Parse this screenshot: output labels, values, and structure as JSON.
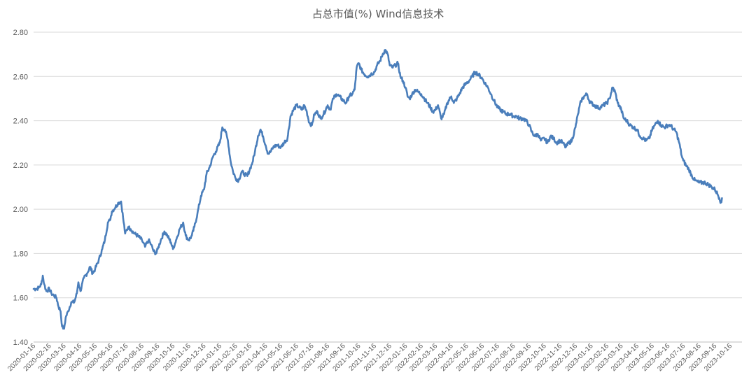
{
  "chart_data": {
    "type": "line",
    "title": "占总市值(%) Wind信息技术",
    "xlabel": "",
    "ylabel": "",
    "ylim": [
      1.4,
      2.8
    ],
    "yticks": [
      "1.40",
      "1.60",
      "1.80",
      "2.00",
      "2.20",
      "2.40",
      "2.60",
      "2.80"
    ],
    "grid": true,
    "legend": "none",
    "line_color": "#4a7ebb",
    "x_tick_labels": [
      "2020-01-16",
      "2020-02-16",
      "2020-03-16",
      "2020-04-16",
      "2020-05-16",
      "2020-06-16",
      "2020-07-16",
      "2020-08-16",
      "2020-09-16",
      "2020-10-16",
      "2020-11-16",
      "2020-12-16",
      "2021-01-16",
      "2021-02-16",
      "2021-03-16",
      "2021-04-16",
      "2021-05-16",
      "2021-06-16",
      "2021-07-16",
      "2021-08-16",
      "2021-09-16",
      "2021-10-16",
      "2021-11-16",
      "2021-12-16",
      "2022-01-16",
      "2022-02-16",
      "2022-03-16",
      "2022-04-16",
      "2022-05-16",
      "2022-06-16",
      "2022-07-16",
      "2022-08-16",
      "2022-09-16",
      "2022-10-16",
      "2022-11-16",
      "2022-12-16",
      "2023-01-16",
      "2023-02-16",
      "2023-03-16",
      "2023-04-16",
      "2023-05-16",
      "2023-06-16",
      "2023-07-16",
      "2023-08-16",
      "2023-09-16",
      "2023-10-16"
    ],
    "series": [
      {
        "points": [
          [
            "2020-01-16",
            1.64
          ],
          [
            "2020-01-21",
            1.64
          ],
          [
            "2020-01-26",
            1.645
          ],
          [
            "2020-01-31",
            1.66
          ],
          [
            "2020-02-03",
            1.7
          ],
          [
            "2020-02-06",
            1.66
          ],
          [
            "2020-02-10",
            1.63
          ],
          [
            "2020-02-16",
            1.64
          ],
          [
            "2020-02-20",
            1.62
          ],
          [
            "2020-02-25",
            1.61
          ],
          [
            "2020-03-01",
            1.6
          ],
          [
            "2020-03-05",
            1.56
          ],
          [
            "2020-03-09",
            1.54
          ],
          [
            "2020-03-12",
            1.47
          ],
          [
            "2020-03-16",
            1.46
          ],
          [
            "2020-03-19",
            1.51
          ],
          [
            "2020-03-24",
            1.54
          ],
          [
            "2020-03-30",
            1.58
          ],
          [
            "2020-04-05",
            1.58
          ],
          [
            "2020-04-10",
            1.62
          ],
          [
            "2020-04-13",
            1.67
          ],
          [
            "2020-04-17",
            1.63
          ],
          [
            "2020-04-24",
            1.69
          ],
          [
            "2020-04-30",
            1.71
          ],
          [
            "2020-05-06",
            1.74
          ],
          [
            "2020-05-11",
            1.71
          ],
          [
            "2020-05-16",
            1.73
          ],
          [
            "2020-05-23",
            1.77
          ],
          [
            "2020-05-30",
            1.82
          ],
          [
            "2020-06-04",
            1.86
          ],
          [
            "2020-06-10",
            1.94
          ],
          [
            "2020-06-14",
            1.95
          ],
          [
            "2020-06-18",
            1.99
          ],
          [
            "2020-06-25",
            2.01
          ],
          [
            "2020-07-01",
            2.03
          ],
          [
            "2020-07-06",
            2.035
          ],
          [
            "2020-07-10",
            1.96
          ],
          [
            "2020-07-14",
            1.89
          ],
          [
            "2020-07-20",
            1.92
          ],
          [
            "2020-07-25",
            1.91
          ],
          [
            "2020-08-01",
            1.89
          ],
          [
            "2020-08-08",
            1.88
          ],
          [
            "2020-08-16",
            1.86
          ],
          [
            "2020-08-22",
            1.83
          ],
          [
            "2020-08-29",
            1.86
          ],
          [
            "2020-09-03",
            1.84
          ],
          [
            "2020-09-08",
            1.81
          ],
          [
            "2020-09-13",
            1.8
          ],
          [
            "2020-09-16",
            1.82
          ],
          [
            "2020-09-22",
            1.86
          ],
          [
            "2020-09-29",
            1.9
          ],
          [
            "2020-10-05",
            1.88
          ],
          [
            "2020-10-12",
            1.85
          ],
          [
            "2020-10-16",
            1.82
          ],
          [
            "2020-10-22",
            1.86
          ],
          [
            "2020-10-29",
            1.91
          ],
          [
            "2020-11-05",
            1.94
          ],
          [
            "2020-11-10",
            1.88
          ],
          [
            "2020-11-16",
            1.86
          ],
          [
            "2020-11-22",
            1.88
          ],
          [
            "2020-11-27",
            1.92
          ],
          [
            "2020-12-03",
            1.98
          ],
          [
            "2020-12-10",
            2.06
          ],
          [
            "2020-12-16",
            2.09
          ],
          [
            "2020-12-21",
            2.16
          ],
          [
            "2020-12-27",
            2.19
          ],
          [
            "2021-01-03",
            2.24
          ],
          [
            "2021-01-08",
            2.26
          ],
          [
            "2021-01-16",
            2.3
          ],
          [
            "2021-01-21",
            2.37
          ],
          [
            "2021-01-26",
            2.36
          ],
          [
            "2021-02-01",
            2.31
          ],
          [
            "2021-02-06",
            2.22
          ],
          [
            "2021-02-11",
            2.17
          ],
          [
            "2021-02-16",
            2.14
          ],
          [
            "2021-02-22",
            2.13
          ],
          [
            "2021-02-28",
            2.17
          ],
          [
            "2021-03-05",
            2.16
          ],
          [
            "2021-03-11",
            2.15
          ],
          [
            "2021-03-16",
            2.18
          ],
          [
            "2021-03-21",
            2.21
          ],
          [
            "2021-03-26",
            2.26
          ],
          [
            "2021-04-01",
            2.33
          ],
          [
            "2021-04-06",
            2.36
          ],
          [
            "2021-04-11",
            2.33
          ],
          [
            "2021-04-16",
            2.29
          ],
          [
            "2021-04-21",
            2.25
          ],
          [
            "2021-04-26",
            2.26
          ],
          [
            "2021-05-01",
            2.28
          ],
          [
            "2021-05-08",
            2.29
          ],
          [
            "2021-05-16",
            2.28
          ],
          [
            "2021-05-22",
            2.3
          ],
          [
            "2021-05-29",
            2.32
          ],
          [
            "2021-06-04",
            2.42
          ],
          [
            "2021-06-10",
            2.45
          ],
          [
            "2021-06-16",
            2.47
          ],
          [
            "2021-06-21",
            2.46
          ],
          [
            "2021-06-27",
            2.45
          ],
          [
            "2021-07-01",
            2.47
          ],
          [
            "2021-07-06",
            2.44
          ],
          [
            "2021-07-11",
            2.39
          ],
          [
            "2021-07-16",
            2.38
          ],
          [
            "2021-07-21",
            2.43
          ],
          [
            "2021-07-27",
            2.44
          ],
          [
            "2021-08-02",
            2.41
          ],
          [
            "2021-08-08",
            2.43
          ],
          [
            "2021-08-16",
            2.47
          ],
          [
            "2021-08-21",
            2.45
          ],
          [
            "2021-08-27",
            2.5
          ],
          [
            "2021-09-02",
            2.52
          ],
          [
            "2021-09-08",
            2.51
          ],
          [
            "2021-09-16",
            2.49
          ],
          [
            "2021-09-21",
            2.48
          ],
          [
            "2021-09-27",
            2.51
          ],
          [
            "2021-10-03",
            2.52
          ],
          [
            "2021-10-08",
            2.54
          ],
          [
            "2021-10-12",
            2.64
          ],
          [
            "2021-10-16",
            2.66
          ],
          [
            "2021-10-21",
            2.63
          ],
          [
            "2021-10-27",
            2.61
          ],
          [
            "2021-11-03",
            2.6
          ],
          [
            "2021-11-09",
            2.61
          ],
          [
            "2021-11-16",
            2.62
          ],
          [
            "2021-11-21",
            2.65
          ],
          [
            "2021-11-27",
            2.67
          ],
          [
            "2021-12-02",
            2.7
          ],
          [
            "2021-12-07",
            2.72
          ],
          [
            "2021-12-12",
            2.7
          ],
          [
            "2021-12-16",
            2.65
          ],
          [
            "2021-12-21",
            2.64
          ],
          [
            "2021-12-27",
            2.65
          ],
          [
            "2022-01-01",
            2.66
          ],
          [
            "2022-01-06",
            2.6
          ],
          [
            "2022-01-11",
            2.58
          ],
          [
            "2022-01-16",
            2.55
          ],
          [
            "2022-01-20",
            2.51
          ],
          [
            "2022-01-24",
            2.5
          ],
          [
            "2022-01-29",
            2.52
          ],
          [
            "2022-02-04",
            2.54
          ],
          [
            "2022-02-10",
            2.53
          ],
          [
            "2022-02-16",
            2.52
          ],
          [
            "2022-02-22",
            2.5
          ],
          [
            "2022-02-28",
            2.48
          ],
          [
            "2022-03-06",
            2.46
          ],
          [
            "2022-03-11",
            2.44
          ],
          [
            "2022-03-16",
            2.45
          ],
          [
            "2022-03-21",
            2.47
          ],
          [
            "2022-03-27",
            2.41
          ],
          [
            "2022-04-02",
            2.43
          ],
          [
            "2022-04-08",
            2.48
          ],
          [
            "2022-04-16",
            2.51
          ],
          [
            "2022-04-21",
            2.48
          ],
          [
            "2022-04-27",
            2.5
          ],
          [
            "2022-05-02",
            2.52
          ],
          [
            "2022-05-08",
            2.55
          ],
          [
            "2022-05-16",
            2.57
          ],
          [
            "2022-05-21",
            2.58
          ],
          [
            "2022-05-27",
            2.6
          ],
          [
            "2022-06-02",
            2.62
          ],
          [
            "2022-06-08",
            2.61
          ],
          [
            "2022-06-16",
            2.59
          ],
          [
            "2022-06-21",
            2.57
          ],
          [
            "2022-06-27",
            2.55
          ],
          [
            "2022-07-03",
            2.52
          ],
          [
            "2022-07-09",
            2.49
          ],
          [
            "2022-07-16",
            2.46
          ],
          [
            "2022-07-21",
            2.45
          ],
          [
            "2022-07-27",
            2.44
          ],
          [
            "2022-08-03",
            2.43
          ],
          [
            "2022-08-09",
            2.43
          ],
          [
            "2022-08-16",
            2.42
          ],
          [
            "2022-08-22",
            2.42
          ],
          [
            "2022-08-28",
            2.41
          ],
          [
            "2022-09-04",
            2.41
          ],
          [
            "2022-09-10",
            2.4
          ],
          [
            "2022-09-16",
            2.38
          ],
          [
            "2022-09-21",
            2.35
          ],
          [
            "2022-09-27",
            2.33
          ],
          [
            "2022-10-03",
            2.34
          ],
          [
            "2022-10-09",
            2.31
          ],
          [
            "2022-10-16",
            2.32
          ],
          [
            "2022-10-22",
            2.3
          ],
          [
            "2022-10-28",
            2.33
          ],
          [
            "2022-11-03",
            2.32
          ],
          [
            "2022-11-09",
            2.3
          ],
          [
            "2022-11-16",
            2.31
          ],
          [
            "2022-11-21",
            2.3
          ],
          [
            "2022-11-27",
            2.28
          ],
          [
            "2022-12-03",
            2.3
          ],
          [
            "2022-12-09",
            2.31
          ],
          [
            "2022-12-16",
            2.37
          ],
          [
            "2022-12-21",
            2.43
          ],
          [
            "2022-12-27",
            2.49
          ],
          [
            "2023-01-02",
            2.51
          ],
          [
            "2023-01-08",
            2.52
          ],
          [
            "2023-01-12",
            2.49
          ],
          [
            "2023-01-16",
            2.48
          ],
          [
            "2023-01-22",
            2.47
          ],
          [
            "2023-01-28",
            2.46
          ],
          [
            "2023-02-03",
            2.46
          ],
          [
            "2023-02-09",
            2.47
          ],
          [
            "2023-02-16",
            2.48
          ],
          [
            "2023-02-21",
            2.5
          ],
          [
            "2023-02-27",
            2.55
          ],
          [
            "2023-03-04",
            2.53
          ],
          [
            "2023-03-09",
            2.48
          ],
          [
            "2023-03-16",
            2.45
          ],
          [
            "2023-03-21",
            2.41
          ],
          [
            "2023-03-27",
            2.4
          ],
          [
            "2023-04-02",
            2.38
          ],
          [
            "2023-04-09",
            2.37
          ],
          [
            "2023-04-16",
            2.36
          ],
          [
            "2023-04-22",
            2.33
          ],
          [
            "2023-04-28",
            2.32
          ],
          [
            "2023-05-04",
            2.31
          ],
          [
            "2023-05-10",
            2.32
          ],
          [
            "2023-05-16",
            2.36
          ],
          [
            "2023-05-21",
            2.38
          ],
          [
            "2023-05-27",
            2.4
          ],
          [
            "2023-06-02",
            2.38
          ],
          [
            "2023-06-09",
            2.37
          ],
          [
            "2023-06-16",
            2.38
          ],
          [
            "2023-06-21",
            2.38
          ],
          [
            "2023-06-27",
            2.36
          ],
          [
            "2023-07-02",
            2.35
          ],
          [
            "2023-07-08",
            2.3
          ],
          [
            "2023-07-13",
            2.24
          ],
          [
            "2023-07-16",
            2.22
          ],
          [
            "2023-07-21",
            2.2
          ],
          [
            "2023-07-27",
            2.18
          ],
          [
            "2023-08-02",
            2.15
          ],
          [
            "2023-08-08",
            2.13
          ],
          [
            "2023-08-16",
            2.12
          ],
          [
            "2023-08-22",
            2.12
          ],
          [
            "2023-08-28",
            2.12
          ],
          [
            "2023-09-04",
            2.11
          ],
          [
            "2023-09-10",
            2.1
          ],
          [
            "2023-09-16",
            2.09
          ],
          [
            "2023-09-21",
            2.07
          ],
          [
            "2023-09-25",
            2.05
          ],
          [
            "2023-09-28",
            2.03
          ],
          [
            "2023-09-30",
            2.05
          ]
        ]
      }
    ]
  }
}
